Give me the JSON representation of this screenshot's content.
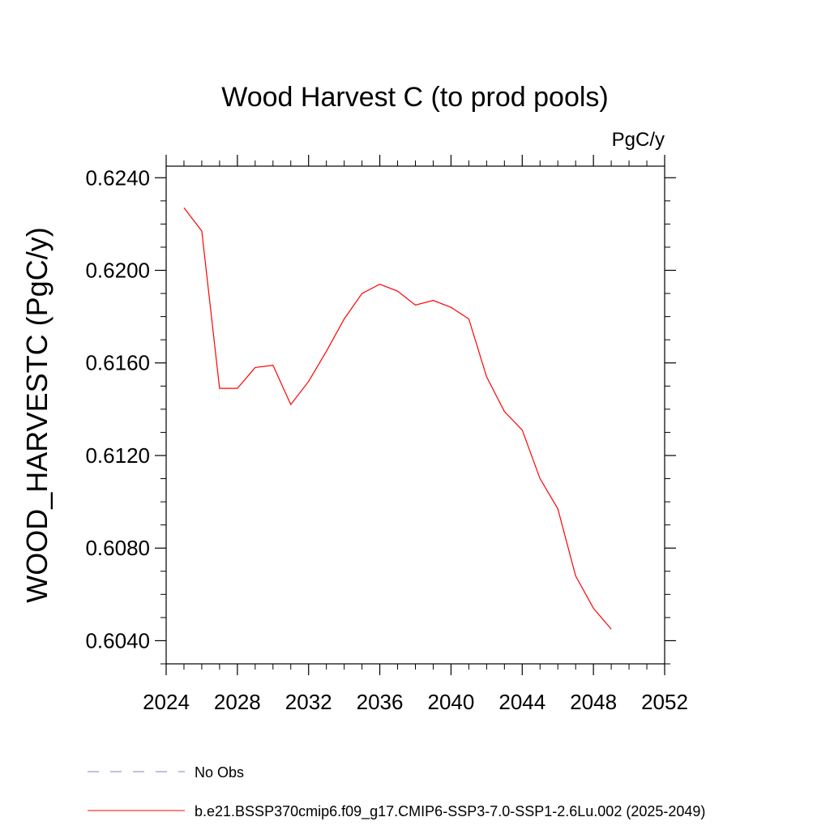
{
  "chart_data": {
    "type": "line",
    "title": "Wood Harvest C (to prod pools)",
    "units_label": "PgC/y",
    "ylabel": "WOOD_HARVESTC  (PgC/y)",
    "xlabel": "",
    "xlim": [
      2024,
      2052
    ],
    "ylim": [
      0.603,
      0.6245
    ],
    "x_ticks": [
      2024,
      2028,
      2032,
      2036,
      2040,
      2044,
      2048,
      2052
    ],
    "x_tick_labels": [
      "2024",
      "2028",
      "2032",
      "2036",
      "2040",
      "2044",
      "2048",
      "2052"
    ],
    "y_ticks": [
      0.604,
      0.608,
      0.612,
      0.616,
      0.62,
      0.624
    ],
    "y_tick_labels": [
      "0.6040",
      "0.6080",
      "0.6120",
      "0.6160",
      "0.6200",
      "0.6240"
    ],
    "grid": false,
    "legend_placement": "bottom",
    "series": [
      {
        "name": "No Obs",
        "color": "#8080c0",
        "dashed": true,
        "x": [],
        "y": []
      },
      {
        "name": "b.e21.BSSP370cmip6.f09_g17.CMIP6-SSP3-7.0-SSP1-2.6Lu.002 (2025-2049)",
        "color": "#ff0000",
        "dashed": false,
        "x": [
          2025,
          2026,
          2027,
          2028,
          2029,
          2030,
          2031,
          2032,
          2033,
          2034,
          2035,
          2036,
          2037,
          2038,
          2039,
          2040,
          2041,
          2042,
          2043,
          2044,
          2045,
          2046,
          2047,
          2048,
          2049
        ],
        "y": [
          0.6227,
          0.6217,
          0.6149,
          0.6149,
          0.6158,
          0.6159,
          0.6142,
          0.6152,
          0.6165,
          0.6179,
          0.619,
          0.6194,
          0.6191,
          0.6185,
          0.6187,
          0.6184,
          0.6179,
          0.6154,
          0.6139,
          0.6131,
          0.611,
          0.6097,
          0.6068,
          0.6054,
          0.6045
        ]
      }
    ]
  }
}
